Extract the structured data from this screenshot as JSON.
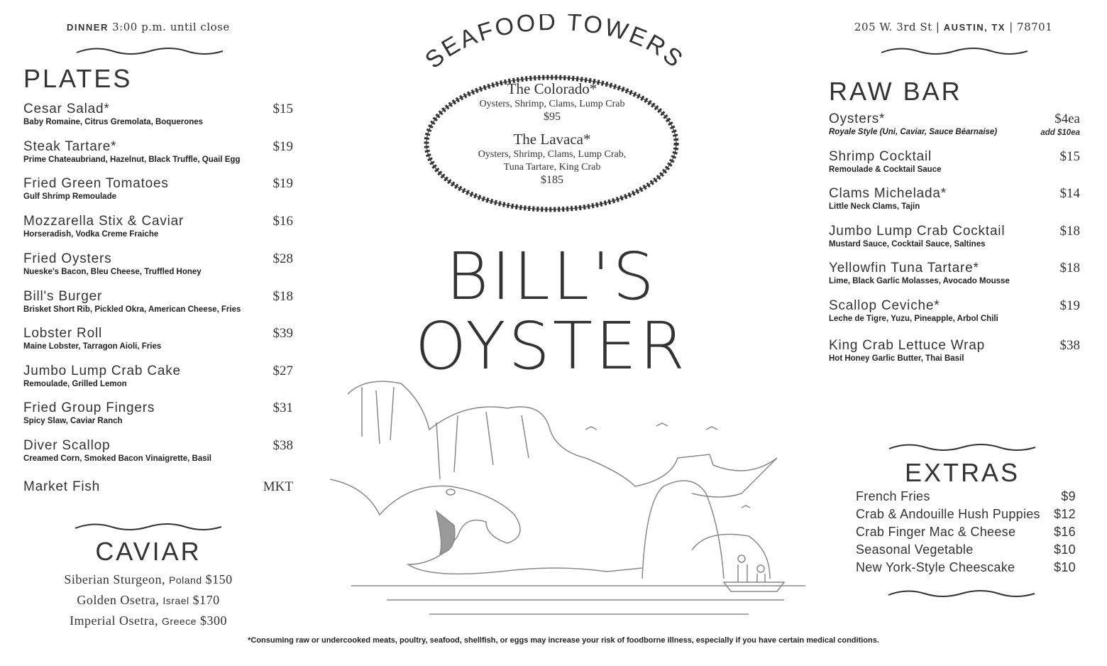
{
  "header": {
    "left_label": "DINNER",
    "left_text": "3:00 p.m. until close",
    "address": "205 W. 3rd St",
    "city": "AUSTIN, TX",
    "zip": "78701"
  },
  "plates": {
    "title": "PLATES",
    "items": [
      {
        "name": "Cesar Salad*",
        "desc": "Baby Romaine, Citrus Gremolata, Boquerones",
        "price": "$15"
      },
      {
        "name": "Steak Tartare*",
        "desc": "Prime Chateaubriand, Hazelnut, Black Truffle, Quail Egg",
        "price": "$19"
      },
      {
        "name": "Fried Green Tomatoes",
        "desc": "Gulf Shrimp Remoulade",
        "price": "$19"
      },
      {
        "name": "Mozzarella Stix & Caviar",
        "desc": "Horseradish, Vodka Creme Fraiche",
        "price": "$16"
      },
      {
        "name": "Fried Oysters",
        "desc": "Nueske's Bacon, Bleu Cheese, Truffled Honey",
        "price": "$28"
      },
      {
        "name": "Bill's Burger",
        "desc": "Brisket Short Rib, Pickled Okra, American Cheese, Fries",
        "price": "$18"
      },
      {
        "name": "Lobster Roll",
        "desc": "Maine Lobster, Tarragon Aioli, Fries",
        "price": "$39"
      },
      {
        "name": "Jumbo Lump Crab Cake",
        "desc": "Remoulade, Grilled Lemon",
        "price": "$27"
      },
      {
        "name": "Fried Group Fingers",
        "desc": "Spicy Slaw, Caviar Ranch",
        "price": "$31"
      },
      {
        "name": "Diver Scallop",
        "desc": "Creamed Corn, Smoked Bacon Vinaigrette, Basil",
        "price": "$38"
      },
      {
        "name": "Market Fish",
        "desc": "",
        "price": "MKT"
      }
    ]
  },
  "caviar": {
    "title": "CAVIAR",
    "items": [
      {
        "name": "Siberian Sturgeon,",
        "origin": "Poland",
        "price": "$150"
      },
      {
        "name": "Golden Osetra,",
        "origin": "Israel",
        "price": "$170"
      },
      {
        "name": "Imperial Osetra,",
        "origin": "Greece",
        "price": "$300"
      }
    ]
  },
  "towers": {
    "title": "SEAFOOD TOWERS",
    "items": [
      {
        "name": "The Colorado*",
        "desc1": "Oysters, Shrimp, Clams, Lump Crab",
        "desc2": "",
        "price": "$95"
      },
      {
        "name": "The Lavaca*",
        "desc1": "Oysters, Shrimp, Clams, Lump Crab,",
        "desc2": "Tuna Tartare, King Crab",
        "price": "$185"
      }
    ]
  },
  "brand": {
    "line1": "BILL'S",
    "line2": "OYSTER"
  },
  "raw_bar": {
    "title": "RAW BAR",
    "items": [
      {
        "name": "Oysters*",
        "desc": "Royale Style (Uni, Caviar, Sauce Béarnaise)",
        "price": "$4ea",
        "addon": "add $10ea"
      },
      {
        "name": "Shrimp Cocktail",
        "desc": "Remoulade & Cocktail Sauce",
        "price": "$15"
      },
      {
        "name": "Clams Michelada*",
        "desc": "Little Neck Clams, Tajin",
        "price": "$14"
      },
      {
        "name": "Jumbo Lump Crab Cocktail",
        "desc": "Mustard Sauce, Cocktail Sauce, Saltines",
        "price": "$18"
      },
      {
        "name": "Yellowfin Tuna Tartare*",
        "desc": "Lime, Black Garlic Molasses, Avocado Mousse",
        "price": "$18"
      },
      {
        "name": "Scallop Ceviche*",
        "desc": "Leche de Tigre, Yuzu, Pineapple, Arbol Chili",
        "price": "$19"
      },
      {
        "name": "King Crab Lettuce Wrap",
        "desc": "Hot Honey Garlic Butter, Thai Basil",
        "price": "$38"
      }
    ]
  },
  "extras": {
    "title": "EXTRAS",
    "items": [
      {
        "name": "French Fries",
        "price": "$9"
      },
      {
        "name": "Crab & Andouille Hush Puppies",
        "price": "$12"
      },
      {
        "name": "Crab Finger Mac & Cheese",
        "price": "$16"
      },
      {
        "name": "Seasonal Vegetable",
        "price": "$10"
      },
      {
        "name": "New York-Style Cheescake",
        "price": "$10"
      }
    ]
  },
  "footer": {
    "disclaimer": "*Consuming raw or undercooked meats, poultry, seafood, shellfish, or eggs may increase your risk of foodborne illness, especially if you have certain medical conditions."
  }
}
